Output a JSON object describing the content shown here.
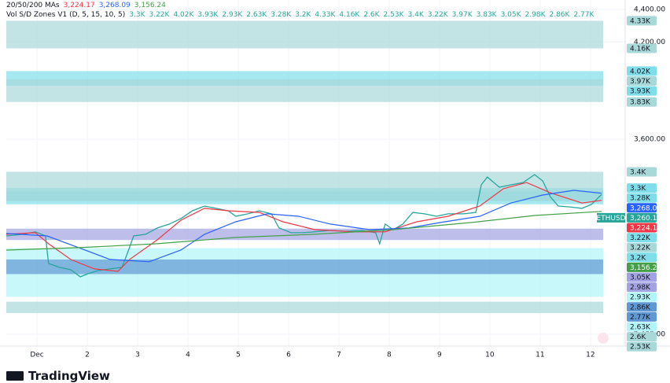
{
  "chart_data": {
    "type": "line",
    "branding": "TradingView",
    "indicator": {
      "name": "20/50/200 MAs",
      "labels": [
        "3,224.17",
        "3,268.09",
        "3,156.24"
      ]
    },
    "zones_title": "Vol S/D Zones V1 (D, 5, 15, 10, 5)",
    "zones": [
      {
        "top": 3300,
        "bottom": 3220,
        "top_label": "3.3K",
        "bottom_label": "3.22K",
        "color": "#80deea"
      },
      {
        "top": 4020,
        "bottom": 3930,
        "top_label": "4.02K",
        "bottom_label": "3.93K",
        "color": "#80deea"
      },
      {
        "top": 2930,
        "bottom": 2630,
        "top_label": "2.93K",
        "bottom_label": "2.63K",
        "color": "#b2f5f8"
      },
      {
        "top": 3280,
        "bottom": 3200,
        "top_label": "3.28K",
        "bottom_label": "3.2K",
        "color": "#80deea"
      },
      {
        "top": 4330,
        "bottom": 4160,
        "top_label": "4.33K",
        "bottom_label": "4.16K",
        "color": "#a8d8d8"
      },
      {
        "top": 2600,
        "bottom": 2530,
        "top_label": "2.6K",
        "bottom_label": "2.53K",
        "color": "#a8d8d8"
      },
      {
        "top": 3400,
        "bottom": 3220,
        "top_label": "3.4K",
        "bottom_label": "3.22K",
        "color": "#a8d8d8"
      },
      {
        "top": 3970,
        "bottom": 3830,
        "top_label": "3.97K",
        "bottom_label": "3.83K",
        "color": "#a8d8d8"
      },
      {
        "top": 3050,
        "bottom": 2980,
        "top_label": "3.05K",
        "bottom_label": "2.98K",
        "color": "#a3a3e3"
      },
      {
        "top": 2860,
        "bottom": 2770,
        "top_label": "2.86K",
        "bottom_label": "2.77K",
        "color": "#5f98d3"
      }
    ],
    "x": [
      0.39,
      0.73,
      0.97,
      1.17,
      1.23,
      1.44,
      1.67,
      1.86,
      2.02,
      2.22,
      2.45,
      2.69,
      2.81,
      2.92,
      3.16,
      3.39,
      3.63,
      3.86,
      4.09,
      4.33,
      4.56,
      4.8,
      4.95,
      5.19,
      5.42,
      5.66,
      5.81,
      6.05,
      6.28,
      6.52,
      6.83,
      7.14,
      7.45,
      7.73,
      7.81,
      7.92,
      8.08,
      8.27,
      8.47,
      8.7,
      8.94,
      9.17,
      9.48,
      9.72,
      9.83,
      9.95,
      10.19,
      10.42,
      10.66,
      10.89,
      11.05,
      11.2,
      11.36,
      11.59,
      11.83,
      12.02,
      12.22
    ],
    "series": [
      {
        "name": "ETHUSD",
        "color": "#26a69a",
        "last_label": "3,260.15",
        "values": [
          3005,
          3015,
          3030,
          3005,
          2836,
          2812,
          2797,
          2753,
          2773,
          2792,
          2802,
          2812,
          2908,
          3005,
          3015,
          3054,
          3078,
          3112,
          3160,
          3189,
          3175,
          3160,
          3126,
          3141,
          3160,
          3141,
          3054,
          3025,
          3025,
          3030,
          3039,
          3034,
          3039,
          3025,
          2957,
          3078,
          3044,
          3078,
          3150,
          3141,
          3126,
          3141,
          3141,
          3150,
          3320,
          3368,
          3305,
          3320,
          3334,
          3383,
          3344,
          3247,
          3189,
          3184,
          3175,
          3199,
          3260.15
        ]
      },
      {
        "color": "#f23645",
        "x": [
          0.39,
          0.97,
          1.23,
          1.67,
          2.14,
          2.61,
          2.84,
          3.39,
          3.86,
          4.33,
          4.8,
          5.42,
          5.89,
          6.52,
          7.3,
          7.92,
          8.55,
          9.17,
          9.8,
          10.27,
          10.73,
          11.2,
          11.83,
          12.22
        ],
        "values": [
          3015,
          3025,
          2957,
          2860,
          2802,
          2787,
          2860,
          2981,
          3102,
          3175,
          3160,
          3150,
          3092,
          3044,
          3030,
          3030,
          3092,
          3126,
          3189,
          3296,
          3334,
          3271,
          3208,
          3224.17
        ]
      },
      {
        "color": "#2962ff",
        "x": [
          0.39,
          1.2,
          1.83,
          2.45,
          3.23,
          3.86,
          4.33,
          4.95,
          5.58,
          6.2,
          6.83,
          7.61,
          8.39,
          9.02,
          9.8,
          10.42,
          11.05,
          11.67,
          12.22
        ],
        "values": [
          3020,
          3005,
          2933,
          2860,
          2846,
          2918,
          3015,
          3092,
          3141,
          3126,
          3078,
          3044,
          3054,
          3088,
          3126,
          3208,
          3257,
          3286,
          3268.09
        ]
      },
      {
        "color": "#43a047",
        "x": [
          0.39,
          1.83,
          3.39,
          4.95,
          6.52,
          8.08,
          9.64,
          10.89,
          12.22
        ],
        "values": [
          2918,
          2933,
          2957,
          2996,
          3015,
          3044,
          3088,
          3131,
          3156.24
        ]
      }
    ],
    "xlim": [
      0.39,
      12.69
    ],
    "xticks": [
      {
        "value": 1,
        "label": "Dec"
      },
      2,
      3,
      4,
      5,
      6,
      7,
      8,
      9,
      10,
      11,
      12
    ],
    "ylim": [
      2327,
      4458
    ],
    "yticks": [
      {
        "value": 4400,
        "label": "4,400.00"
      },
      {
        "value": 4200,
        "label": "4,200.00"
      },
      {
        "value": 3600,
        "label": "3,600.00"
      },
      {
        "value": 2400,
        "label": "2,400.00"
      }
    ],
    "grid": true
  }
}
